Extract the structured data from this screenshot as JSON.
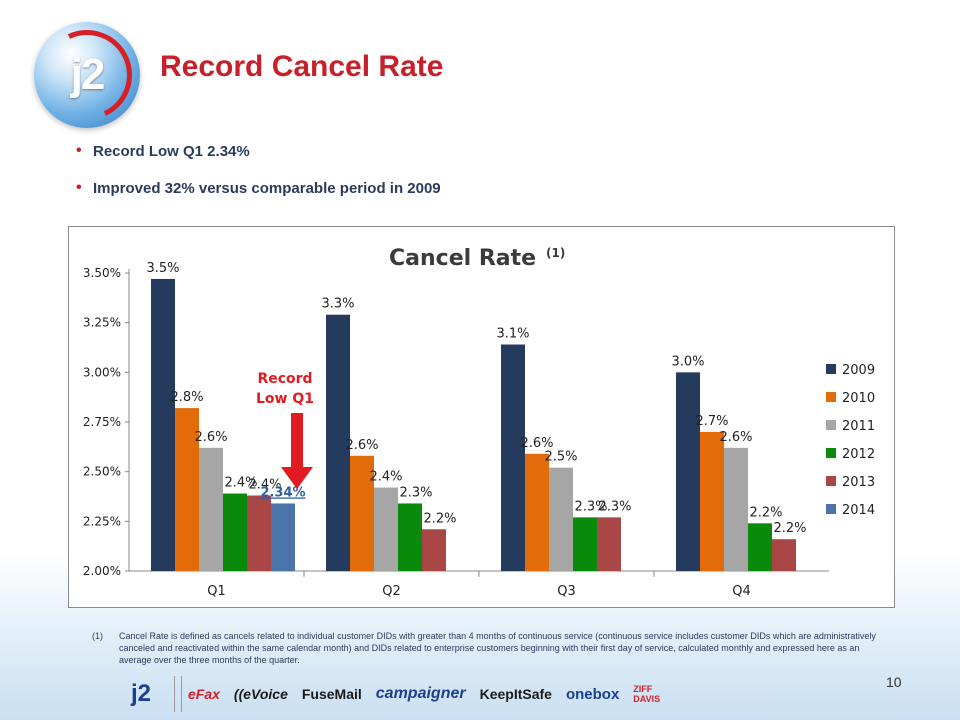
{
  "header": {
    "logo_text": "j2",
    "title": "Record Cancel Rate"
  },
  "bullets": [
    "Record Low Q1 2.34%",
    "Improved 32% versus comparable period in 2009"
  ],
  "chart_data": {
    "type": "bar",
    "title": "Cancel Rate",
    "title_superscript": "(1)",
    "categories": [
      "Q1",
      "Q2",
      "Q3",
      "Q4"
    ],
    "ylim": [
      0.02,
      0.035
    ],
    "yticks": [
      "2.00%",
      "2.25%",
      "2.50%",
      "2.75%",
      "3.00%",
      "3.25%",
      "3.50%"
    ],
    "legend_position": "right",
    "series": [
      {
        "name": "2009",
        "color": "#243b5e",
        "values": [
          0.0347,
          0.0329,
          0.0314,
          0.03
        ],
        "labels": [
          "3.5%",
          "3.3%",
          "3.1%",
          "3.0%"
        ]
      },
      {
        "name": "2010",
        "color": "#e36c0a",
        "values": [
          0.0282,
          0.0258,
          0.0259,
          0.027
        ],
        "labels": [
          "2.8%",
          "2.6%",
          "2.6%",
          "2.7%"
        ]
      },
      {
        "name": "2011",
        "color": "#a6a6a6",
        "values": [
          0.0262,
          0.0242,
          0.0252,
          0.0262
        ],
        "labels": [
          "2.6%",
          "2.4%",
          "2.5%",
          "2.6%"
        ]
      },
      {
        "name": "2012",
        "color": "#0a8a0a",
        "values": [
          0.0239,
          0.0234,
          0.0227,
          0.0224
        ],
        "labels": [
          "2.4%",
          "2.3%",
          "2.3%",
          "2.2%"
        ]
      },
      {
        "name": "2013",
        "color": "#a94646",
        "values": [
          0.0238,
          0.0221,
          0.0227,
          0.0216
        ],
        "labels": [
          "2.4%",
          "2.2%",
          "2.3%",
          "2.2%"
        ]
      },
      {
        "name": "2014",
        "color": "#4a74aa",
        "values": [
          0.0234,
          null,
          null,
          null
        ],
        "labels": [
          "2.34%",
          null,
          null,
          null
        ]
      }
    ],
    "annotation": {
      "text": [
        "Record",
        "Low Q1"
      ],
      "color": "#e21b22",
      "highlight_label": "2.34%",
      "highlight_color": "#2d5fa3"
    }
  },
  "footnote": {
    "marker": "(1)",
    "text": "Cancel Rate is defined as cancels related to individual customer DIDs with greater than 4 months of continuous service (continuous service includes customer DIDs which are administratively canceled and reactivated within the same calendar month) and DIDs related to enterprise customers beginning with their first day of service, calculated monthly and expressed here as an average over the three months of the quarter."
  },
  "page_number": "10",
  "brands": {
    "j2": "j2",
    "efax": "eFax",
    "evoice": "((eVoice",
    "fusemail": "FuseMail",
    "campaigner": "campaigner",
    "keepitsafe": "KeepItSafe",
    "onebox": "onebox",
    "ziff": "ZIFF DAVIS"
  }
}
